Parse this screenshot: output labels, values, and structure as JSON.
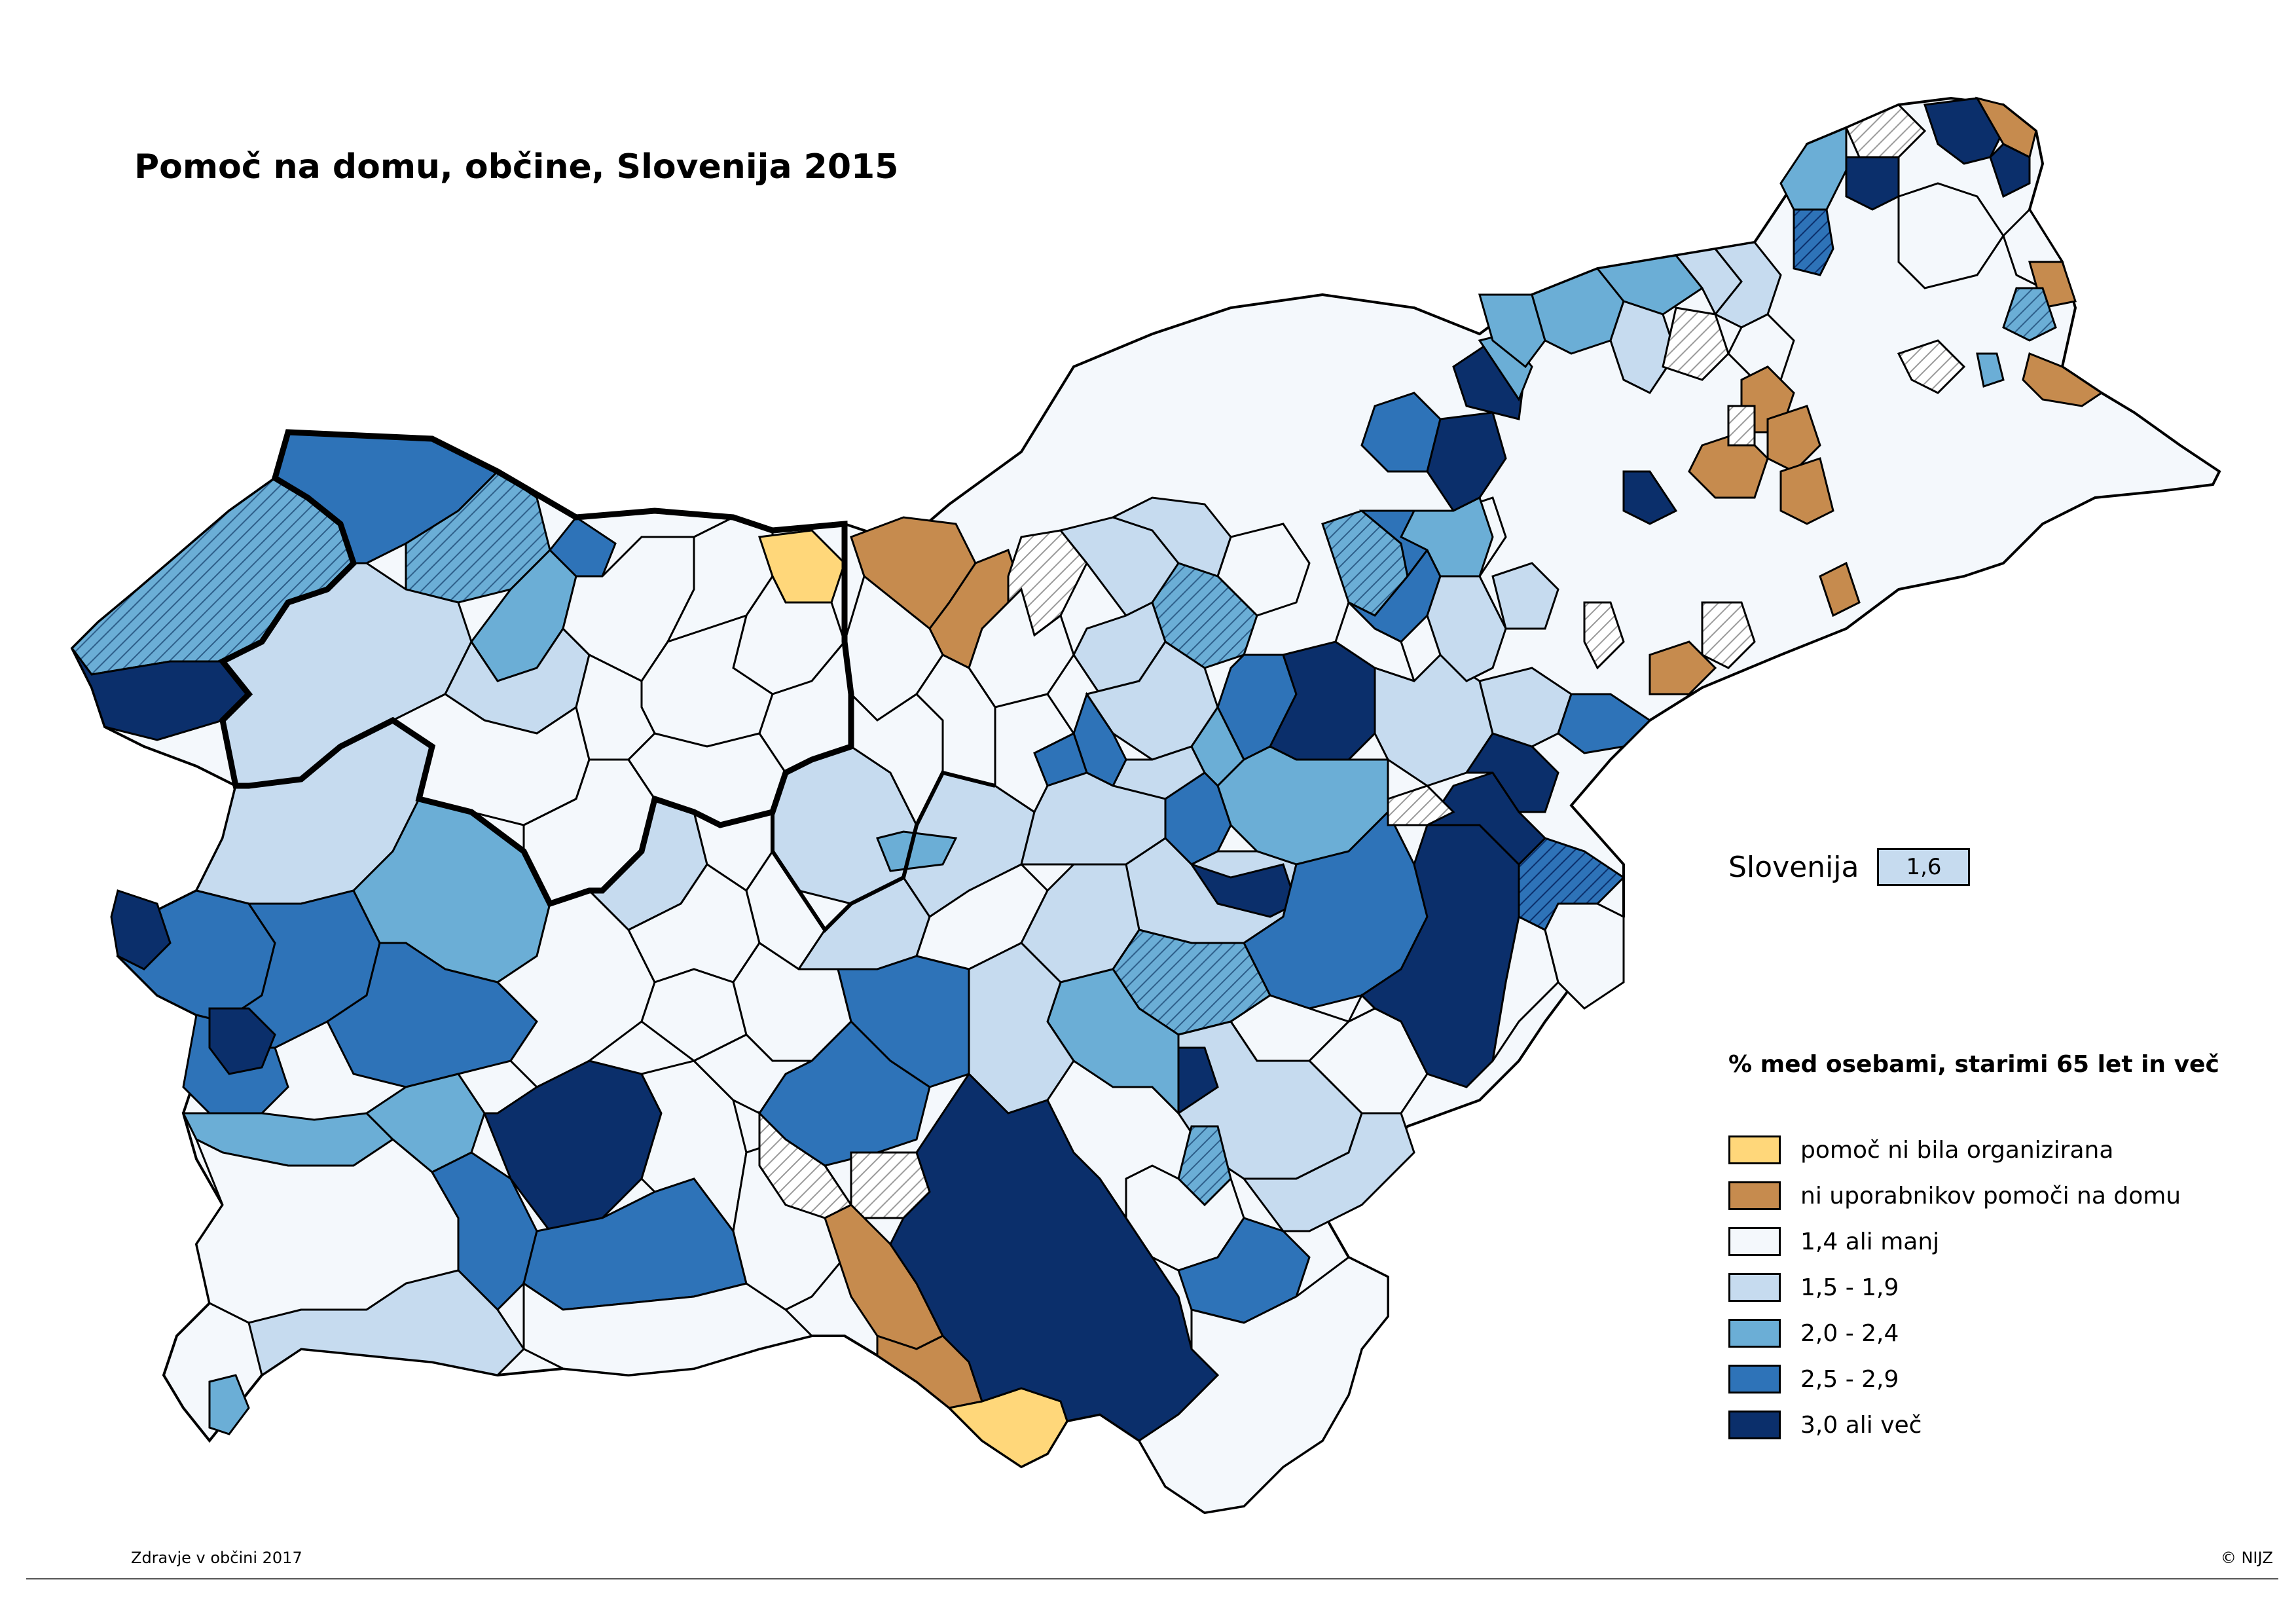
{
  "title": "Pomoč na domu, občine, Slovenija 2015",
  "national": {
    "label": "Slovenija",
    "value": "1,6",
    "color": "#c6dbef"
  },
  "legend": {
    "title": "% med osebami, starimi 65 let in več",
    "items": [
      {
        "label": "pomoč ni bila organizirana",
        "color": "#ffd77a"
      },
      {
        "label": "ni uporabnikov pomoči na domu",
        "color": "#c68b4e"
      },
      {
        "label": "1,4 ali manj",
        "color": "#f4f8fc"
      },
      {
        "label": "1,5 - 1,9",
        "color": "#c6dbef"
      },
      {
        "label": "2,0 - 2,4",
        "color": "#6baed6"
      },
      {
        "label": "2,5 - 2,9",
        "color": "#2e73b8"
      },
      {
        "label": "3,0 ali več",
        "color": "#0b2f6b"
      }
    ]
  },
  "footer": {
    "source": "Zdravje v občini 2017",
    "copyright": "© NIJZ"
  },
  "colors": {
    "hatch": "#9a9a9a",
    "border": "#000000"
  }
}
